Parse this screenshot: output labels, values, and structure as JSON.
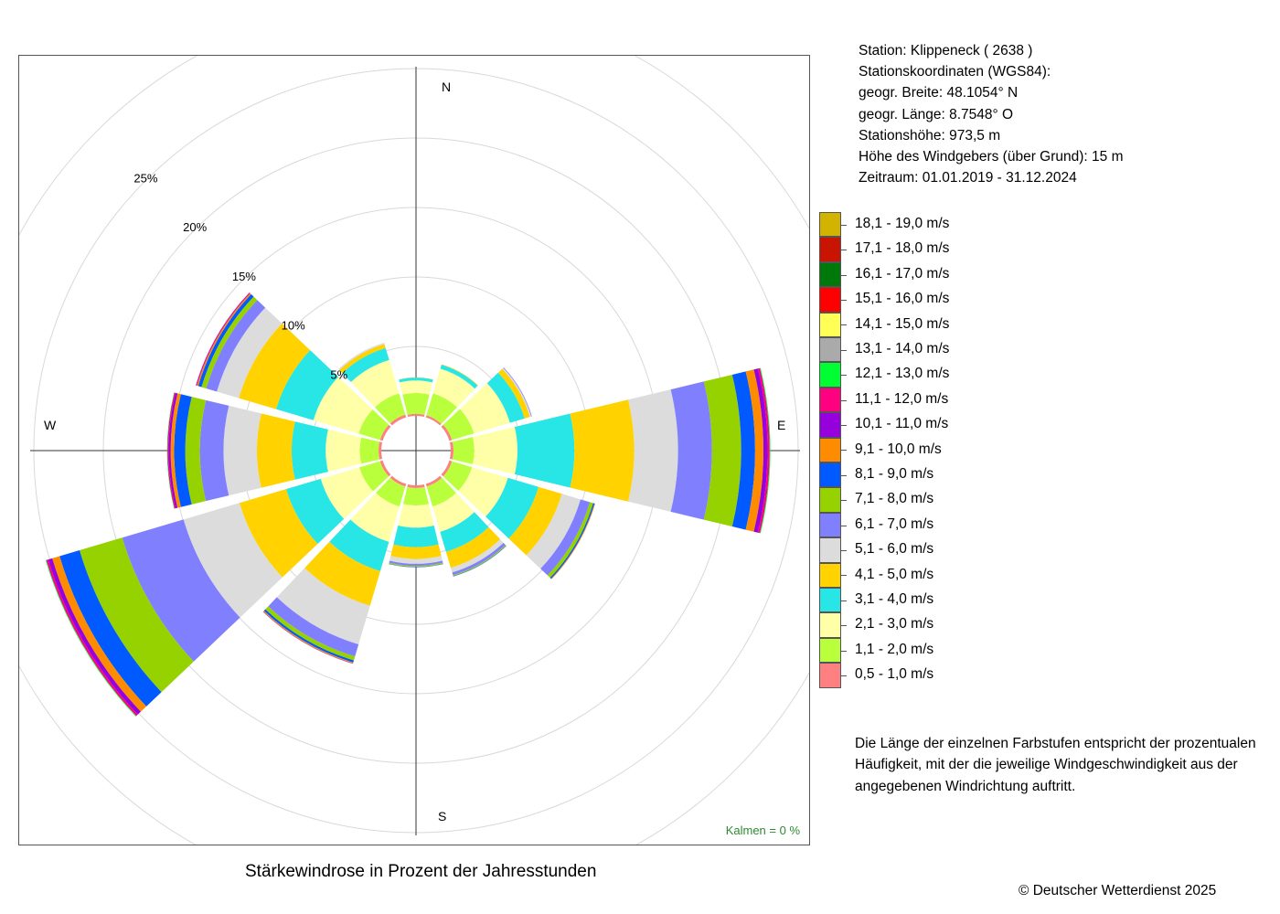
{
  "station": {
    "line1": "Station:  Klippeneck  ( 2638 )",
    "line2": "Stationskoordinaten (WGS84):",
    "line3": "geogr. Breite: 48.1054° N",
    "line4": "geogr. Länge:   8.7548° O",
    "line5": "Stationshöhe: 973,5 m",
    "line6": "Höhe des Windgebers (über Grund): 15 m",
    "line7": "Zeitraum: 01.01.2019 - 31.12.2024"
  },
  "legend_note": "Die Länge der einzelnen Farbstufen entspricht der prozentualen Häufigkeit, mit der die jeweilige Windgeschwindigkeit aus der angegebenen Windrichtung auftritt.",
  "kalmen": "Kalmen  =  0 %",
  "title": "Stärkewindrose in Prozent der Jahresstunden",
  "copyright": "© Deutscher Wetterdienst  2025",
  "chart_data": {
    "type": "wind-rose",
    "title": "Stärkewindrose in Prozent der Jahresstunden",
    "radial_unit": "%",
    "ring_labels": [
      "5%",
      "10%",
      "15%",
      "20%",
      "25%"
    ],
    "ring_values": [
      5,
      10,
      15,
      20,
      25,
      30
    ],
    "inner_offset_percent": 2.5,
    "compass_labels": [
      "N",
      "E",
      "S",
      "W"
    ],
    "directions_deg": [
      0,
      30,
      60,
      90,
      120,
      150,
      180,
      210,
      240,
      270,
      300,
      330
    ],
    "speed_classes": [
      {
        "label": "0,5 - 1,0 m/s",
        "color": "#ff8080"
      },
      {
        "label": "1,1 - 2,0 m/s",
        "color": "#b9ff3c"
      },
      {
        "label": "2,1 - 3,0 m/s",
        "color": "#ffffa8"
      },
      {
        "label": "3,1 - 4,0 m/s",
        "color": "#28e6e6"
      },
      {
        "label": "4,1 - 5,0 m/s",
        "color": "#ffd200"
      },
      {
        "label": "5,1 - 6,0 m/s",
        "color": "#dcdcdc"
      },
      {
        "label": "6,1 - 7,0 m/s",
        "color": "#8080ff"
      },
      {
        "label": "7,1 - 8,0 m/s",
        "color": "#96d200"
      },
      {
        "label": "8,1 - 9,0 m/s",
        "color": "#005aff"
      },
      {
        "label": "9,1 - 10,0 m/s",
        "color": "#ff8c00"
      },
      {
        "label": "10,1 - 11,0 m/s",
        "color": "#9600dc"
      },
      {
        "label": "11,1 - 12,0 m/s",
        "color": "#ff0080"
      },
      {
        "label": "12,1 - 13,0 m/s",
        "color": "#00ff32"
      },
      {
        "label": "13,1 - 14,0 m/s",
        "color": "#aaaaaa"
      },
      {
        "label": "14,1 - 15,0 m/s",
        "color": "#ffff55"
      },
      {
        "label": "15,1 - 16,0 m/s",
        "color": "#ff0000"
      },
      {
        "label": "16,1 - 17,0 m/s",
        "color": "#00780a"
      },
      {
        "label": "17,1 - 18,0 m/s",
        "color": "#c81400"
      },
      {
        "label": "18,1 - 19,0 m/s",
        "color": "#d2b400"
      }
    ],
    "series": [
      {
        "direction": 0,
        "values": [
          0.15,
          1.5,
          0.9,
          0.2,
          0.02
        ]
      },
      {
        "direction": 30,
        "values": [
          0.15,
          1.65,
          1.85,
          0.3,
          0.03
        ]
      },
      {
        "direction": 60,
        "values": [
          0.2,
          1.65,
          2.7,
          1.1,
          0.4,
          0.1,
          0.05
        ]
      },
      {
        "direction": 90,
        "values": [
          0.2,
          1.5,
          3.1,
          4.1,
          4.3,
          3.15,
          2.45,
          2.1,
          1.0,
          0.6,
          0.3,
          0.15,
          0.05
        ]
      },
      {
        "direction": 120,
        "values": [
          0.2,
          1.5,
          2.7,
          2.3,
          1.75,
          1.4,
          0.7,
          0.25,
          0.1,
          0.05
        ]
      },
      {
        "direction": 150,
        "values": [
          0.2,
          1.5,
          1.9,
          1.5,
          1.2,
          0.35,
          0.2,
          0.07,
          0.03
        ]
      },
      {
        "direction": 180,
        "values": [
          0.2,
          1.25,
          1.6,
          1.4,
          0.85,
          0.35,
          0.15,
          0.07,
          0.03
        ]
      },
      {
        "direction": 210,
        "values": [
          0.2,
          1.5,
          2.65,
          2.2,
          2.6,
          2.9,
          0.9,
          0.3,
          0.15,
          0.07,
          0.03
        ]
      },
      {
        "direction": 240,
        "values": [
          0.2,
          1.55,
          2.9,
          2.6,
          3.5,
          4.2,
          4.6,
          3.2,
          1.5,
          0.55,
          0.3,
          0.15,
          0.05
        ]
      },
      {
        "direction": 270,
        "values": [
          0.2,
          1.35,
          2.45,
          2.45,
          2.5,
          2.4,
          1.7,
          1.05,
          0.8,
          0.25,
          0.15,
          0.08,
          0.03
        ]
      },
      {
        "direction": 300,
        "values": [
          0.2,
          1.6,
          3.4,
          2.8,
          2.8,
          1.65,
          0.8,
          0.35,
          0.25,
          0.1,
          0.05,
          0.03
        ]
      },
      {
        "direction": 330,
        "values": [
          0.2,
          1.6,
          2.5,
          0.9,
          0.3,
          0.1
        ]
      }
    ]
  }
}
